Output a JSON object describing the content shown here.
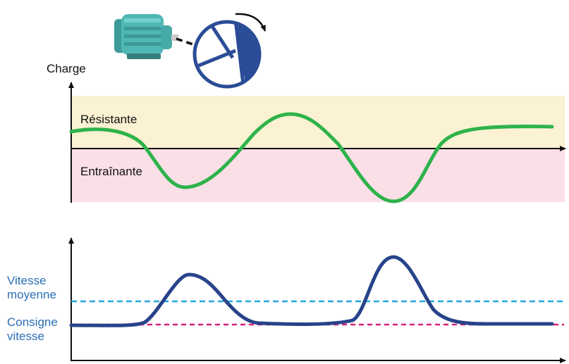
{
  "colors": {
    "band_resistant": "#fbf1d3",
    "band_driving": "#fadfe7",
    "load_curve": "#2db34a",
    "speed_curve": "#27448a",
    "avg_speed_line": "#22a6e0",
    "setpoint_line": "#d8217a",
    "label_blue": "#2a6fb5",
    "motor_body": "#4fb7b4",
    "disk": "#2b4c96"
  },
  "icons": {
    "motor": "electric-motor-icon",
    "disk": "rotating-disk-icon",
    "rotation": "rotation-arrow-icon"
  },
  "top_chart": {
    "axis_label": "Charge",
    "zone_resistant": "Résistante",
    "zone_driving": "Entraînante"
  },
  "bottom_chart": {
    "avg_speed_label_line1": "Vitesse",
    "avg_speed_label_line2": "moyenne",
    "setpoint_label_line1": "Consigne",
    "setpoint_label_line2": "vitesse"
  }
}
